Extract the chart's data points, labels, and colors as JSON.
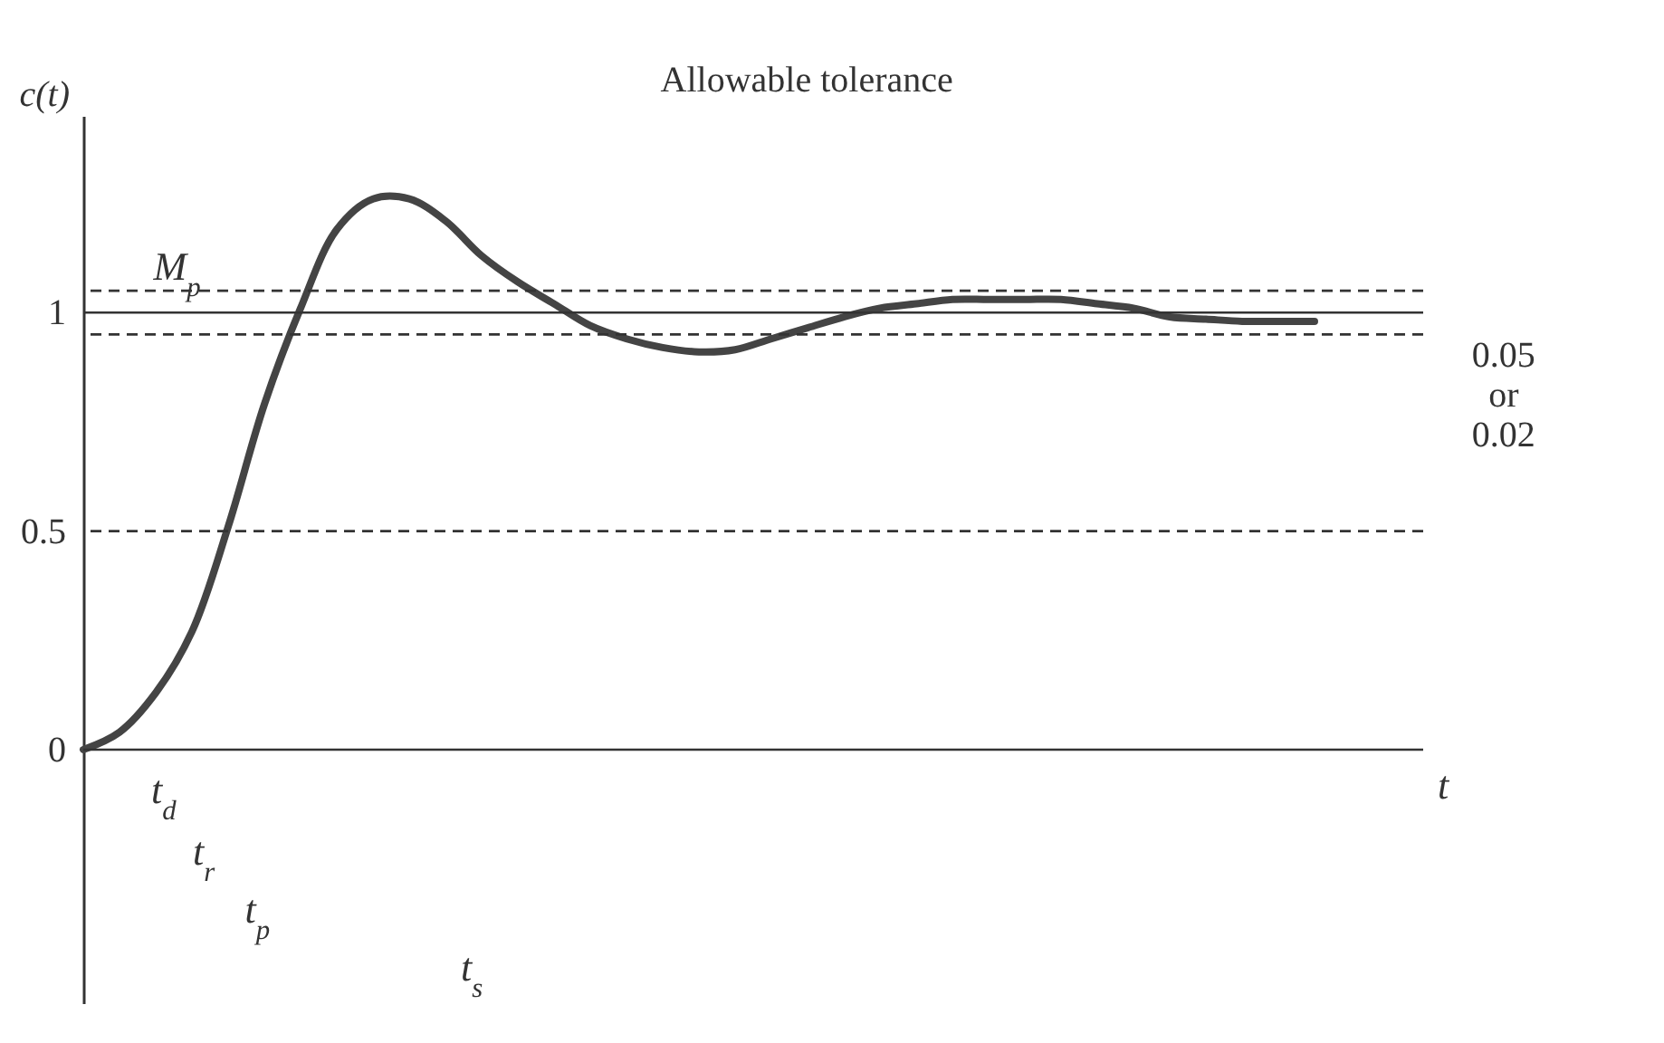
{
  "chart_data": {
    "type": "line",
    "xlabel": "t",
    "ylabel": "c(t)",
    "tick_labels": "y",
    "grid": false,
    "ylim": [
      -0.58,
      1.45
    ],
    "yticks": [
      0,
      0.5,
      1
    ],
    "categories": [
      null,
      null,
      null,
      null,
      null,
      null,
      null,
      null,
      null,
      null,
      null,
      null,
      null,
      null,
      null,
      null,
      null,
      null,
      null,
      null,
      null,
      null,
      null,
      null,
      null,
      null,
      null,
      null,
      null,
      null,
      null,
      null,
      null,
      null,
      null,
      null,
      null,
      null
    ],
    "series": [
      {
        "color": "#444444",
        "values": [
          0,
          0.04,
          0.13,
          0.27,
          0.51,
          0.79,
          1.01,
          1.19,
          1.26,
          1.26,
          1.21,
          1.13,
          1.07,
          1.02,
          0.97,
          0.94,
          0.92,
          0.91,
          0.915,
          0.94,
          0.965,
          0.99,
          1.01,
          1.02,
          1.03,
          1.03,
          1.03,
          1.03,
          1.02,
          1.01,
          0.99,
          0.985,
          0.98,
          0.98,
          0.98,
          null,
          null,
          null
        ]
      }
    ],
    "ref_lines": [
      {
        "axis": "y",
        "value": 0,
        "line_style": "solid"
      },
      {
        "axis": "y",
        "value": 1,
        "line_style": "solid"
      },
      {
        "axis": "y",
        "value": 1.05,
        "line_style": "dashed"
      },
      {
        "axis": "y",
        "value": 0.95,
        "line_style": "dashed"
      },
      {
        "axis": "y",
        "value": 0.5,
        "line_style": "dashed"
      }
    ],
    "annotations": [
      "Allowable tolerance",
      "M$_{p}$",
      "0.05\nor\n0.02",
      "t$_{d}$",
      "t$_{r}$",
      "t$_{p}$",
      "t$_{s}$"
    ]
  }
}
